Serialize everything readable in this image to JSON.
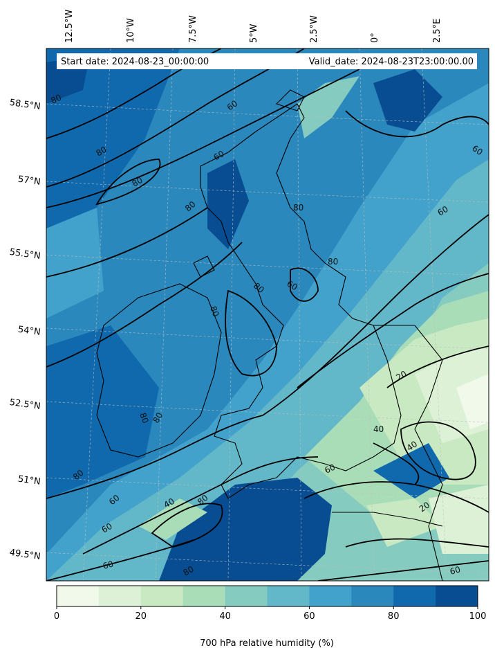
{
  "info": {
    "start_date": "Start date: 2024-08-23_00:00:00",
    "valid_date": "Valid_date: 2024-08-23T23:00:00.00"
  },
  "axes": {
    "lon_ticks": [
      "12.5°W",
      "10°W",
      "7.5°W",
      "5°W",
      "2.5°W",
      "0°",
      "2.5°E"
    ],
    "lat_ticks": [
      "58.5°N",
      "57°N",
      "55.5°N",
      "54°N",
      "52.5°N",
      "51°N",
      "49.5°N"
    ]
  },
  "contour_labels": [
    "80",
    "80",
    "60",
    "80",
    "80",
    "60",
    "60",
    "80",
    "60",
    "80",
    "80",
    "60",
    "80",
    "20",
    "40",
    "40",
    "20",
    "80",
    "80",
    "80",
    "60",
    "40",
    "80",
    "60",
    "60",
    "80",
    "60",
    "60"
  ],
  "colorbar": {
    "label": "700 hPa relative humidity (%)",
    "ticks": [
      "0",
      "20",
      "40",
      "60",
      "80",
      "100"
    ],
    "min": 0,
    "max": 100,
    "levels": [
      0,
      10,
      20,
      30,
      40,
      50,
      60,
      70,
      80,
      90,
      100
    ],
    "colors": [
      "#f1f9ea",
      "#dcf1d6",
      "#c8e9c1",
      "#a9ddb7",
      "#86cbbf",
      "#62b7c9",
      "#43a2cb",
      "#2a88bd",
      "#1069ad",
      "#084c91"
    ]
  }
}
